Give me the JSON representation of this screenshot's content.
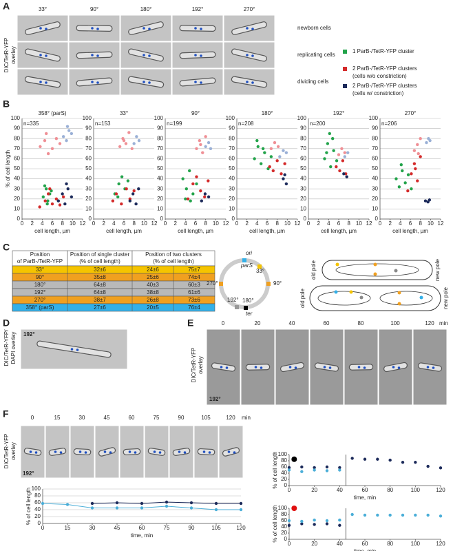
{
  "panel_labels": [
    "A",
    "B",
    "C",
    "D",
    "E",
    "F"
  ],
  "panel_a": {
    "side_label": [
      "DIC/TetR-YFP",
      "overlay"
    ],
    "columns": [
      "33°",
      "90°",
      "180°",
      "192°",
      "270°"
    ],
    "rows": [
      "newborn cells",
      "replicating cells",
      "dividing cells"
    ],
    "legend": [
      {
        "color": "#22a34a",
        "text": [
          "1 ParB-/TetR-YFP cluster"
        ]
      },
      {
        "color": "#d42a2a",
        "text": [
          "2 ParB-/TetR-YFP clusters",
          "(cells w/o constriction)"
        ]
      },
      {
        "color": "#1c2a5a",
        "text": [
          "2 ParB-/TetR-YFP clusters",
          "(cells w/ constriction)"
        ]
      }
    ]
  },
  "chart_data": [
    {
      "type": "scatter",
      "title": "358° (parS)",
      "annotation": "n=335",
      "xlabel": "cell length, µm",
      "ylabel": "% of cell length",
      "xlim": [
        0,
        12
      ],
      "xticks": [
        0,
        2,
        4,
        6,
        8,
        10,
        12
      ],
      "ylim": [
        0,
        100
      ],
      "yticks": [
        0,
        10,
        20,
        30,
        40,
        50,
        60,
        70,
        80,
        90,
        100
      ],
      "grid": true,
      "series": [
        {
          "color": "#22a34a",
          "x": [
            4.2,
            4.8,
            5.1,
            5.5,
            4.5,
            5.8,
            5.0
          ],
          "values": [
            22,
            30,
            18,
            25,
            33,
            28,
            15
          ]
        },
        {
          "color": "#d42a2a",
          "x": [
            3.5,
            4.6,
            5.2,
            6.0,
            6.8,
            7.5,
            8.2,
            5.5
          ],
          "values": [
            12,
            18,
            25,
            15,
            20,
            14,
            22,
            30
          ]
        },
        {
          "color": "#ef8f95",
          "x": [
            3.6,
            4.5,
            5.2,
            6.0,
            6.8,
            7.5,
            4.8
          ],
          "values": [
            72,
            78,
            65,
            70,
            80,
            75,
            85
          ]
        },
        {
          "color": "#1c2a5a",
          "x": [
            7.2,
            8.0,
            8.5,
            9.1,
            9.8,
            8.8
          ],
          "values": [
            18,
            25,
            15,
            30,
            22,
            35
          ]
        },
        {
          "color": "#9ab0d6",
          "x": [
            8.2,
            8.8,
            9.3,
            9.8,
            9.0
          ],
          "values": [
            82,
            78,
            88,
            85,
            92
          ]
        }
      ]
    },
    {
      "type": "scatter",
      "title": "33°",
      "annotation": "n=153",
      "xlabel": "cell length, µm",
      "xlim": [
        0,
        12
      ],
      "xticks": [
        0,
        2,
        4,
        6,
        8,
        10,
        12
      ],
      "ylim": [
        0,
        100
      ],
      "yticks": [
        0,
        10,
        20,
        30,
        40,
        50,
        60,
        70,
        80,
        90,
        100
      ],
      "grid": true,
      "series": [
        {
          "color": "#22a34a",
          "x": [
            4.2,
            5.0,
            5.6,
            6.2,
            6.8,
            4.8
          ],
          "values": [
            25,
            35,
            42,
            30,
            38,
            22
          ]
        },
        {
          "color": "#d42a2a",
          "x": [
            3.8,
            4.5,
            5.5,
            6.5,
            7.2,
            8.0
          ],
          "values": [
            18,
            25,
            15,
            30,
            20,
            28
          ]
        },
        {
          "color": "#ef8f95",
          "x": [
            5.2,
            5.8,
            6.4,
            7.0,
            7.6,
            6.0
          ],
          "values": [
            72,
            80,
            75,
            86,
            70,
            78
          ]
        },
        {
          "color": "#1c2a5a",
          "x": [
            7.2,
            7.8,
            8.4,
            8.9
          ],
          "values": [
            18,
            25,
            15,
            30
          ]
        },
        {
          "color": "#9ab0d6",
          "x": [
            8.0,
            8.5,
            9.0
          ],
          "values": [
            75,
            82,
            78
          ]
        }
      ]
    },
    {
      "type": "scatter",
      "title": "90°",
      "annotation": "n=199",
      "xlabel": "cell length, µm",
      "xlim": [
        0,
        12
      ],
      "xticks": [
        0,
        2,
        4,
        6,
        8,
        10,
        12
      ],
      "ylim": [
        0,
        100
      ],
      "yticks": [
        0,
        10,
        20,
        30,
        40,
        50,
        60,
        70,
        80,
        90,
        100
      ],
      "grid": true,
      "series": [
        {
          "color": "#22a34a",
          "x": [
            3.5,
            4.2,
            4.8,
            5.5,
            6.2,
            4.0,
            5.0
          ],
          "values": [
            40,
            30,
            48,
            25,
            35,
            20,
            18
          ]
        },
        {
          "color": "#d42a2a",
          "x": [
            4.5,
            5.5,
            6.2,
            7.0,
            7.8,
            8.5
          ],
          "values": [
            20,
            35,
            42,
            28,
            22,
            38
          ]
        },
        {
          "color": "#ef8f95",
          "x": [
            6.2,
            6.8,
            7.4,
            8.0,
            7.0
          ],
          "values": [
            70,
            78,
            66,
            82,
            74
          ]
        },
        {
          "color": "#1c2a5a",
          "x": [
            7.2,
            7.9,
            8.6
          ],
          "values": [
            18,
            25,
            22
          ]
        },
        {
          "color": "#9ab0d6",
          "x": [
            8.0,
            8.6,
            9.0
          ],
          "values": [
            72,
            76,
            70
          ]
        }
      ]
    },
    {
      "type": "scatter",
      "title": "180°",
      "annotation": "n=208",
      "xlabel": "cell length, µm",
      "xlim": [
        0,
        12
      ],
      "xticks": [
        0,
        2,
        4,
        6,
        8,
        10,
        12
      ],
      "ylim": [
        0,
        100
      ],
      "yticks": [
        0,
        10,
        20,
        30,
        40,
        50,
        60,
        70,
        80,
        90,
        100
      ],
      "grid": true,
      "series": [
        {
          "color": "#22a34a",
          "x": [
            3.5,
            4.2,
            4.8,
            5.5,
            6.2,
            6.8,
            4.0,
            5.2
          ],
          "values": [
            60,
            72,
            55,
            66,
            50,
            62,
            78,
            70
          ]
        },
        {
          "color": "#d42a2a",
          "x": [
            6.5,
            7.2,
            8.0,
            8.8,
            9.5
          ],
          "values": [
            52,
            48,
            58,
            45,
            55
          ]
        },
        {
          "color": "#ef8f95",
          "x": [
            6.8,
            7.5,
            8.2
          ],
          "values": [
            70,
            76,
            72
          ]
        },
        {
          "color": "#1c2a5a",
          "x": [
            9.2,
            9.8,
            9.5
          ],
          "values": [
            40,
            35,
            44
          ]
        },
        {
          "color": "#9ab0d6",
          "x": [
            8.5,
            9.2,
            9.8
          ],
          "values": [
            62,
            68,
            66
          ]
        }
      ]
    },
    {
      "type": "scatter",
      "title": "192°",
      "annotation": "n=200",
      "xlabel": "cell length, µm",
      "xlim": [
        0,
        12
      ],
      "xticks": [
        0,
        2,
        4,
        6,
        8,
        10,
        12
      ],
      "ylim": [
        0,
        100
      ],
      "yticks": [
        0,
        10,
        20,
        30,
        40,
        50,
        60,
        70,
        80,
        90,
        100
      ],
      "grid": true,
      "series": [
        {
          "color": "#22a34a",
          "x": [
            3.2,
            3.8,
            4.4,
            5.0,
            5.6,
            4.2,
            3.6,
            4.8
          ],
          "values": [
            60,
            75,
            52,
            68,
            58,
            85,
            66,
            80
          ]
        },
        {
          "color": "#d42a2a",
          "x": [
            5.5,
            6.2,
            6.8,
            7.4
          ],
          "values": [
            52,
            48,
            58,
            45
          ]
        },
        {
          "color": "#ef8f95",
          "x": [
            6.0,
            6.6,
            7.2
          ],
          "values": [
            64,
            70,
            66
          ]
        },
        {
          "color": "#1c2a5a",
          "x": [
            7.0,
            7.6
          ],
          "values": [
            45,
            42
          ]
        },
        {
          "color": "#9ab0d6",
          "x": [
            7.2,
            7.8
          ],
          "values": [
            62,
            66
          ]
        }
      ]
    },
    {
      "type": "scatter",
      "title": "270°",
      "annotation": "n=206",
      "xlabel": "cell length, µm",
      "xlim": [
        0,
        12
      ],
      "xticks": [
        0,
        2,
        4,
        6,
        8,
        10,
        12
      ],
      "ylim": [
        0,
        100
      ],
      "yticks": [
        0,
        10,
        20,
        30,
        40,
        50,
        60,
        70,
        80,
        90,
        100
      ],
      "grid": true,
      "series": [
        {
          "color": "#22a34a",
          "x": [
            3.2,
            3.8,
            4.4,
            5.0,
            5.6,
            6.2,
            4.2
          ],
          "values": [
            40,
            32,
            48,
            36,
            44,
            30,
            54
          ]
        },
        {
          "color": "#d42a2a",
          "x": [
            5.5,
            6.2,
            6.8,
            7.4,
            8.0,
            7.0
          ],
          "values": [
            28,
            45,
            55,
            38,
            62,
            50
          ]
        },
        {
          "color": "#ef8f95",
          "x": [
            6.8,
            7.4,
            8.0,
            7.6
          ],
          "values": [
            68,
            74,
            80,
            65
          ]
        },
        {
          "color": "#1c2a5a",
          "x": [
            9.0,
            9.5,
            9.8
          ],
          "values": [
            18,
            17,
            19
          ]
        },
        {
          "color": "#9ab0d6",
          "x": [
            9.2,
            9.6,
            9.9
          ],
          "values": [
            76,
            80,
            78
          ]
        }
      ]
    },
    {
      "type": "line",
      "xlabel": "time, min",
      "ylabel": "% of cell length",
      "xlim": [
        0,
        120
      ],
      "xticks": [
        0,
        15,
        30,
        45,
        60,
        75,
        90,
        105,
        120
      ],
      "ylim": [
        0,
        100
      ],
      "yticks": [
        0,
        20,
        40,
        60,
        80,
        100
      ],
      "grid": true,
      "series": [
        {
          "color": "#4aaed8",
          "x": [
            0,
            15,
            30,
            45,
            60,
            75,
            90,
            105,
            120
          ],
          "values": [
            58,
            55,
            45,
            45,
            45,
            50,
            45,
            40,
            40
          ]
        },
        {
          "color": "#1c2a5a",
          "x": [
            30,
            45,
            60,
            75,
            90,
            105,
            120
          ],
          "values": [
            58,
            60,
            58,
            62,
            60,
            58,
            58
          ]
        }
      ]
    },
    {
      "type": "scatter",
      "xlabel": "time, min",
      "ylabel": "% of cell length",
      "xlim": [
        0,
        120
      ],
      "xticks": [
        0,
        20,
        40,
        60,
        80,
        100,
        120
      ],
      "ylim": [
        0,
        100
      ],
      "yticks": [
        0,
        20,
        40,
        60,
        80,
        100
      ],
      "grid": false,
      "divider_x": 45,
      "series": [
        {
          "color": "#000000",
          "size": 4,
          "x": [
            4
          ],
          "values": [
            85
          ]
        },
        {
          "color": "#1c2a5a",
          "x": [
            0,
            10,
            20,
            30,
            40,
            50,
            60,
            70,
            80,
            90,
            100,
            110,
            120
          ],
          "values": [
            58,
            60,
            58,
            60,
            58,
            88,
            85,
            85,
            82,
            75,
            75,
            62,
            57
          ]
        },
        {
          "color": "#4aaed8",
          "x": [
            0,
            10,
            20,
            30,
            40
          ],
          "values": [
            50,
            45,
            50,
            48,
            50
          ]
        }
      ]
    },
    {
      "type": "scatter",
      "xlabel": "time, min",
      "ylabel": "% of cell length",
      "xlim": [
        0,
        120
      ],
      "xticks": [
        0,
        20,
        40,
        60,
        80,
        100,
        120
      ],
      "ylim": [
        0,
        100
      ],
      "yticks": [
        0,
        20,
        40,
        60,
        80,
        100
      ],
      "grid": false,
      "divider_x": 45,
      "series": [
        {
          "color": "#e01010",
          "size": 4,
          "x": [
            4
          ],
          "values": [
            100
          ]
        },
        {
          "color": "#1c2a5a",
          "x": [
            0,
            10,
            20,
            30,
            40
          ],
          "values": [
            45,
            50,
            48,
            50,
            45
          ]
        },
        {
          "color": "#4aaed8",
          "x": [
            0,
            10,
            20,
            30,
            40,
            50,
            60,
            70,
            80,
            90,
            100,
            110,
            120
          ],
          "values": [
            60,
            58,
            62,
            60,
            62,
            80,
            78,
            78,
            78,
            78,
            78,
            78,
            75
          ]
        }
      ]
    }
  ],
  "panel_c": {
    "header": [
      [
        "Position",
        "of ParB-/TetR-YFP"
      ],
      [
        "Position of single cluster",
        "(% of cell length)"
      ],
      [
        "Position of two clusters",
        "(% of cell length)"
      ]
    ],
    "rows": [
      [
        "33°",
        "32±6",
        "24±6",
        "75±7"
      ],
      [
        "90°",
        "35±8",
        "25±6",
        "74±4"
      ],
      [
        "180°",
        "64±8",
        "40±3",
        "60±3"
      ],
      [
        "192°",
        "64±8",
        "38±8",
        "61±6"
      ],
      [
        "270°",
        "38±7",
        "26±8",
        "73±6"
      ],
      [
        "358° (parS)",
        "27±6",
        "20±5",
        "76±4"
      ]
    ],
    "row_colors": [
      "#f5c400",
      "#f0a020",
      "#b9b9b9",
      "#b9b9b9",
      "#f0a020",
      "#33b0e8"
    ],
    "circle": {
      "ori": "ori",
      "parS": "parS",
      "a33": "33°",
      "a270": "270°",
      "a90": "90°",
      "a192": "192°",
      "a180": "180°",
      "ter": "ter"
    },
    "poles": [
      "old pole",
      "new pole",
      "old pole",
      "new pole"
    ]
  },
  "panel_d": {
    "side_label": [
      "DIC/TetR-YFP/",
      "DAPI overlay"
    ],
    "stamp": "192°"
  },
  "panel_e": {
    "side_label": [
      "DIC/TetR-YFP",
      "overlay"
    ],
    "times": [
      "0",
      "20",
      "40",
      "60",
      "80",
      "100",
      "120"
    ],
    "unit": "min",
    "stamp": "192°"
  },
  "panel_f": {
    "side_label": [
      "DIC/TetR-YFP",
      "overlay"
    ],
    "times": [
      "0",
      "15",
      "30",
      "45",
      "60",
      "75",
      "90",
      "105",
      "120"
    ],
    "unit": "min",
    "stamp": "192°"
  }
}
